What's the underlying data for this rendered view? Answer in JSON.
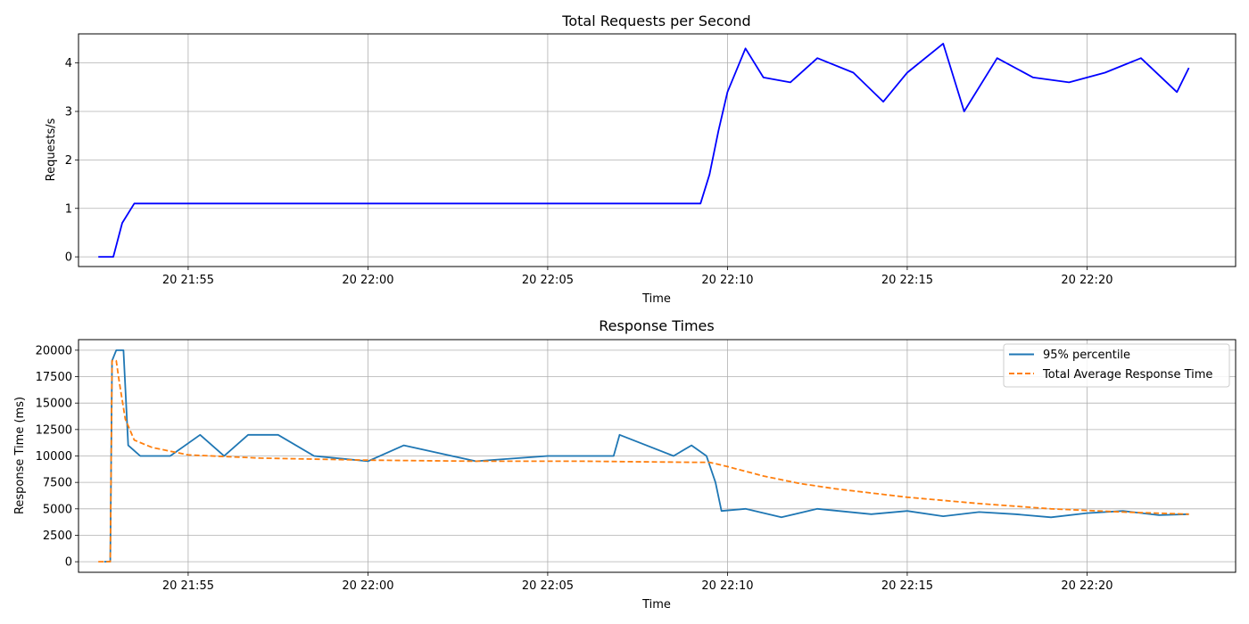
{
  "chart_data": [
    {
      "type": "line",
      "title": "Total Requests per Second",
      "xlabel": "Time",
      "ylabel": "Requests/s",
      "xlim": [
        "20 21:51:57",
        "20 22:24:08"
      ],
      "ylim": [
        -0.2,
        4.6
      ],
      "grid": true,
      "x_ticks": [
        "20 21:55",
        "20 22:00",
        "20 22:05",
        "20 22:10",
        "20 22:15",
        "20 22:20"
      ],
      "y_ticks": [
        0,
        1,
        2,
        3,
        4
      ],
      "colors": {
        "series": "#0000ff"
      },
      "series": [
        {
          "x": [
            "20 21:52:30",
            "20 21:52:55",
            "20 21:53:10",
            "20 21:53:30",
            "20 21:54:00",
            "20 21:55:00",
            "20 21:57:00",
            "20 22:00:00",
            "20 22:03:00",
            "20 22:06:00",
            "20 22:08:30",
            "20 22:09:15",
            "20 22:09:30",
            "20 22:09:45",
            "20 22:10:00",
            "20 22:10:30",
            "20 22:11:00",
            "20 22:11:45",
            "20 22:12:30",
            "20 22:13:30",
            "20 22:14:20",
            "20 22:15:00",
            "20 22:16:00",
            "20 22:16:35",
            "20 22:17:30",
            "20 22:18:30",
            "20 22:19:30",
            "20 22:20:30",
            "20 22:21:30",
            "20 22:22:30",
            "20 22:22:50"
          ],
          "values": [
            0,
            0,
            0.7,
            1.1,
            1.1,
            1.1,
            1.1,
            1.1,
            1.1,
            1.1,
            1.1,
            1.1,
            1.7,
            2.6,
            3.4,
            4.3,
            3.7,
            3.6,
            4.1,
            3.8,
            3.2,
            3.8,
            4.4,
            3.0,
            4.1,
            3.7,
            3.6,
            3.8,
            4.1,
            3.4,
            3.9
          ]
        }
      ]
    },
    {
      "type": "line",
      "title": "Response Times",
      "xlabel": "Time",
      "ylabel": "Response Time (ms)",
      "xlim": [
        "20 21:51:57",
        "20 22:24:08"
      ],
      "ylim": [
        -1000,
        21000
      ],
      "grid": true,
      "x_ticks": [
        "20 21:55",
        "20 22:00",
        "20 22:05",
        "20 22:10",
        "20 22:15",
        "20 22:20"
      ],
      "y_ticks": [
        0,
        2500,
        5000,
        7500,
        10000,
        12500,
        15000,
        17500,
        20000
      ],
      "legend": "top-right",
      "series": [
        {
          "name": "95% percentile",
          "color": "#1f77b4",
          "style": "solid",
          "x": [
            "20 21:52:40",
            "20 21:52:50",
            "20 21:52:53",
            "20 21:53:00",
            "20 21:53:12",
            "20 21:53:20",
            "20 21:53:40",
            "20 21:54:30",
            "20 21:55:20",
            "20 21:56:00",
            "20 21:56:40",
            "20 21:57:30",
            "20 21:58:30",
            "20 22:00:00",
            "20 22:01:00",
            "20 22:03:00",
            "20 22:05:00",
            "20 22:06:50",
            "20 22:07:00",
            "20 22:08:30",
            "20 22:09:00",
            "20 22:09:25",
            "20 22:09:40",
            "20 22:09:50",
            "20 22:10:30",
            "20 22:11:30",
            "20 22:12:30",
            "20 22:14:00",
            "20 22:15:00",
            "20 22:16:00",
            "20 22:17:00",
            "20 22:18:00",
            "20 22:19:00",
            "20 22:20:00",
            "20 22:21:00",
            "20 22:22:00",
            "20 22:22:50"
          ],
          "values": [
            0,
            0,
            19000,
            20000,
            20000,
            11000,
            10000,
            10000,
            12000,
            10000,
            12000,
            12000,
            10000,
            9500,
            11000,
            9500,
            10000,
            10000,
            12000,
            10000,
            11000,
            10000,
            7500,
            4800,
            5000,
            4200,
            5000,
            4500,
            4800,
            4300,
            4700,
            4500,
            4200,
            4600,
            4800,
            4400,
            4500
          ]
        },
        {
          "name": "Total Average Response Time",
          "color": "#ff7f0e",
          "style": "dashed",
          "x": [
            "20 21:52:30",
            "20 21:52:50",
            "20 21:52:53",
            "20 21:53:00",
            "20 21:53:05",
            "20 21:53:15",
            "20 21:53:30",
            "20 21:54:00",
            "20 21:55:00",
            "20 21:57:00",
            "20 22:00:00",
            "20 22:03:00",
            "20 22:06:00",
            "20 22:09:00",
            "20 22:09:30",
            "20 22:10:00",
            "20 22:11:00",
            "20 22:12:00",
            "20 22:13:00",
            "20 22:15:00",
            "20 22:17:00",
            "20 22:19:00",
            "20 22:21:00",
            "20 22:22:50"
          ],
          "values": [
            0,
            0,
            19000,
            19000,
            17000,
            13500,
            11500,
            10800,
            10100,
            9800,
            9600,
            9500,
            9500,
            9400,
            9400,
            9000,
            8100,
            7400,
            6900,
            6100,
            5500,
            5000,
            4700,
            4500
          ]
        }
      ]
    }
  ]
}
